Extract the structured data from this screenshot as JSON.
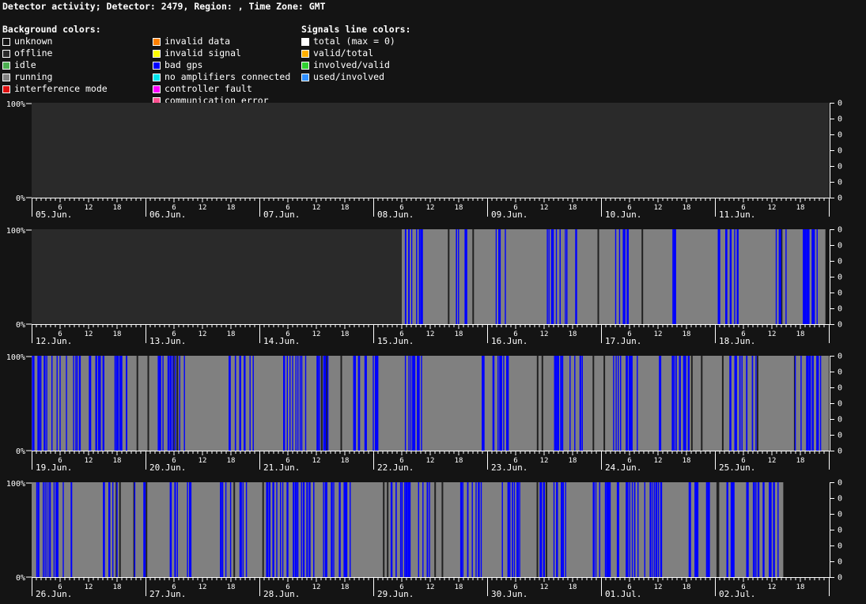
{
  "header": {
    "title": "Detector activity; Detector: 2479, Region: , Time Zone: GMT"
  },
  "legend": {
    "background_heading": "Background colors:",
    "signals_heading": "Signals line colors:",
    "background_col1": [
      {
        "label": "unknown",
        "color": "#141414"
      },
      {
        "label": "offline",
        "color": "#2a2a2a"
      },
      {
        "label": "idle",
        "color": "#4caf50"
      },
      {
        "label": "running",
        "color": "#808080"
      },
      {
        "label": "interference mode",
        "color": "#e01010"
      }
    ],
    "background_col2": [
      {
        "label": "invalid data",
        "color": "#ff8000"
      },
      {
        "label": "invalid signal",
        "color": "#ffff00"
      },
      {
        "label": "bad gps",
        "color": "#0000ff"
      },
      {
        "label": "no amplifiers connected",
        "color": "#00e5ee"
      },
      {
        "label": "controller fault",
        "color": "#ff00ff"
      },
      {
        "label": "communication error",
        "color": "#ff5090"
      }
    ],
    "signals": [
      {
        "label": "total (max = 0)",
        "color": "#ffffff"
      },
      {
        "label": "valid/total",
        "color": "#ffb000"
      },
      {
        "label": "involved/valid",
        "color": "#30d030"
      },
      {
        "label": "used/involved",
        "color": "#3090ff"
      }
    ]
  },
  "chart_data": {
    "type": "timeline",
    "y_label_top": "100%",
    "y_label_bottom": "0%",
    "right_axis_ticks": [
      "0",
      "0",
      "0",
      "0",
      "0",
      "0",
      "0"
    ],
    "hour_ticks": [
      "6",
      "12",
      "18"
    ],
    "colors": {
      "offline": "#2a2a2a",
      "running": "#808080",
      "bad_gps": "#0000ff",
      "gap": "#202020",
      "unknown": "#141414"
    },
    "weeks": [
      {
        "days": [
          "05.Jun.",
          "06.Jun.",
          "07.Jun.",
          "08.Jun.",
          "09.Jun.",
          "10.Jun.",
          "11.Jun."
        ],
        "segments": [
          {
            "from_day": 0,
            "to_day": 7,
            "state": "offline"
          }
        ],
        "gps_ranges": [],
        "gap_ranges": []
      },
      {
        "days": [
          "12.Jun.",
          "13.Jun.",
          "14.Jun.",
          "15.Jun.",
          "16.Jun.",
          "17.Jun.",
          "18.Jun."
        ],
        "segments": [
          {
            "from_day": 0,
            "to_day": 3.25,
            "state": "offline"
          },
          {
            "from_day": 3.25,
            "to_day": 6.97,
            "state": "running"
          }
        ],
        "gps_ranges": [
          [
            3.26,
            3.48
          ],
          [
            3.7,
            3.82
          ],
          [
            4.05,
            4.16
          ],
          [
            4.52,
            4.78
          ],
          [
            5.12,
            5.26
          ],
          [
            5.6,
            5.68
          ],
          [
            6.02,
            6.2
          ],
          [
            6.5,
            6.62
          ],
          [
            6.75,
            6.95
          ]
        ],
        "gap_ranges": [
          [
            3.5,
            4.0
          ],
          [
            4.8,
            5.4
          ],
          [
            6.3,
            6.9
          ]
        ]
      },
      {
        "days": [
          "19.Jun.",
          "20.Jun.",
          "21.Jun.",
          "22.Jun.",
          "23.Jun.",
          "24.Jun.",
          "25.Jun."
        ],
        "segments": [
          {
            "from_day": 0,
            "to_day": 7,
            "state": "running"
          }
        ],
        "gps_ranges": [
          [
            0.0,
            0.42
          ],
          [
            0.5,
            0.85
          ],
          [
            1.1,
            1.35
          ],
          [
            1.7,
            1.95
          ],
          [
            2.2,
            2.6
          ],
          [
            2.8,
            3.05
          ],
          [
            3.25,
            3.48
          ],
          [
            3.95,
            4.2
          ],
          [
            4.55,
            4.85
          ],
          [
            5.1,
            5.35
          ],
          [
            5.5,
            5.8
          ],
          [
            6.1,
            6.4
          ],
          [
            6.7,
            6.95
          ]
        ],
        "gap_ranges": [
          [
            0.9,
            1.8
          ],
          [
            2.0,
            3.0
          ],
          [
            4.3,
            5.2
          ],
          [
            5.6,
            6.9
          ]
        ]
      },
      {
        "days": [
          "26.Jun.",
          "27.Jun.",
          "28.Jun.",
          "29.Jun.",
          "30.Jun.",
          "01.Jul.",
          "02.Jul."
        ],
        "segments": [
          {
            "from_day": 0,
            "to_day": 6.6,
            "state": "running"
          }
        ],
        "gps_ranges": [
          [
            0.0,
            0.35
          ],
          [
            0.6,
            0.75
          ],
          [
            0.9,
            1.0
          ],
          [
            1.2,
            1.45
          ],
          [
            1.65,
            1.9
          ],
          [
            2.05,
            2.2
          ],
          [
            2.2,
            2.5
          ],
          [
            2.55,
            2.8
          ],
          [
            3.15,
            3.55
          ],
          [
            3.75,
            3.95
          ],
          [
            4.1,
            4.3
          ],
          [
            4.45,
            4.7
          ],
          [
            4.9,
            5.15
          ],
          [
            5.2,
            5.55
          ],
          [
            5.7,
            5.95
          ],
          [
            6.1,
            6.55
          ]
        ],
        "gap_ranges": [
          [
            0.4,
            1.5
          ],
          [
            1.6,
            2.2
          ],
          [
            3.0,
            3.9
          ],
          [
            4.0,
            4.6
          ],
          [
            5.6,
            6.3
          ]
        ]
      }
    ]
  }
}
